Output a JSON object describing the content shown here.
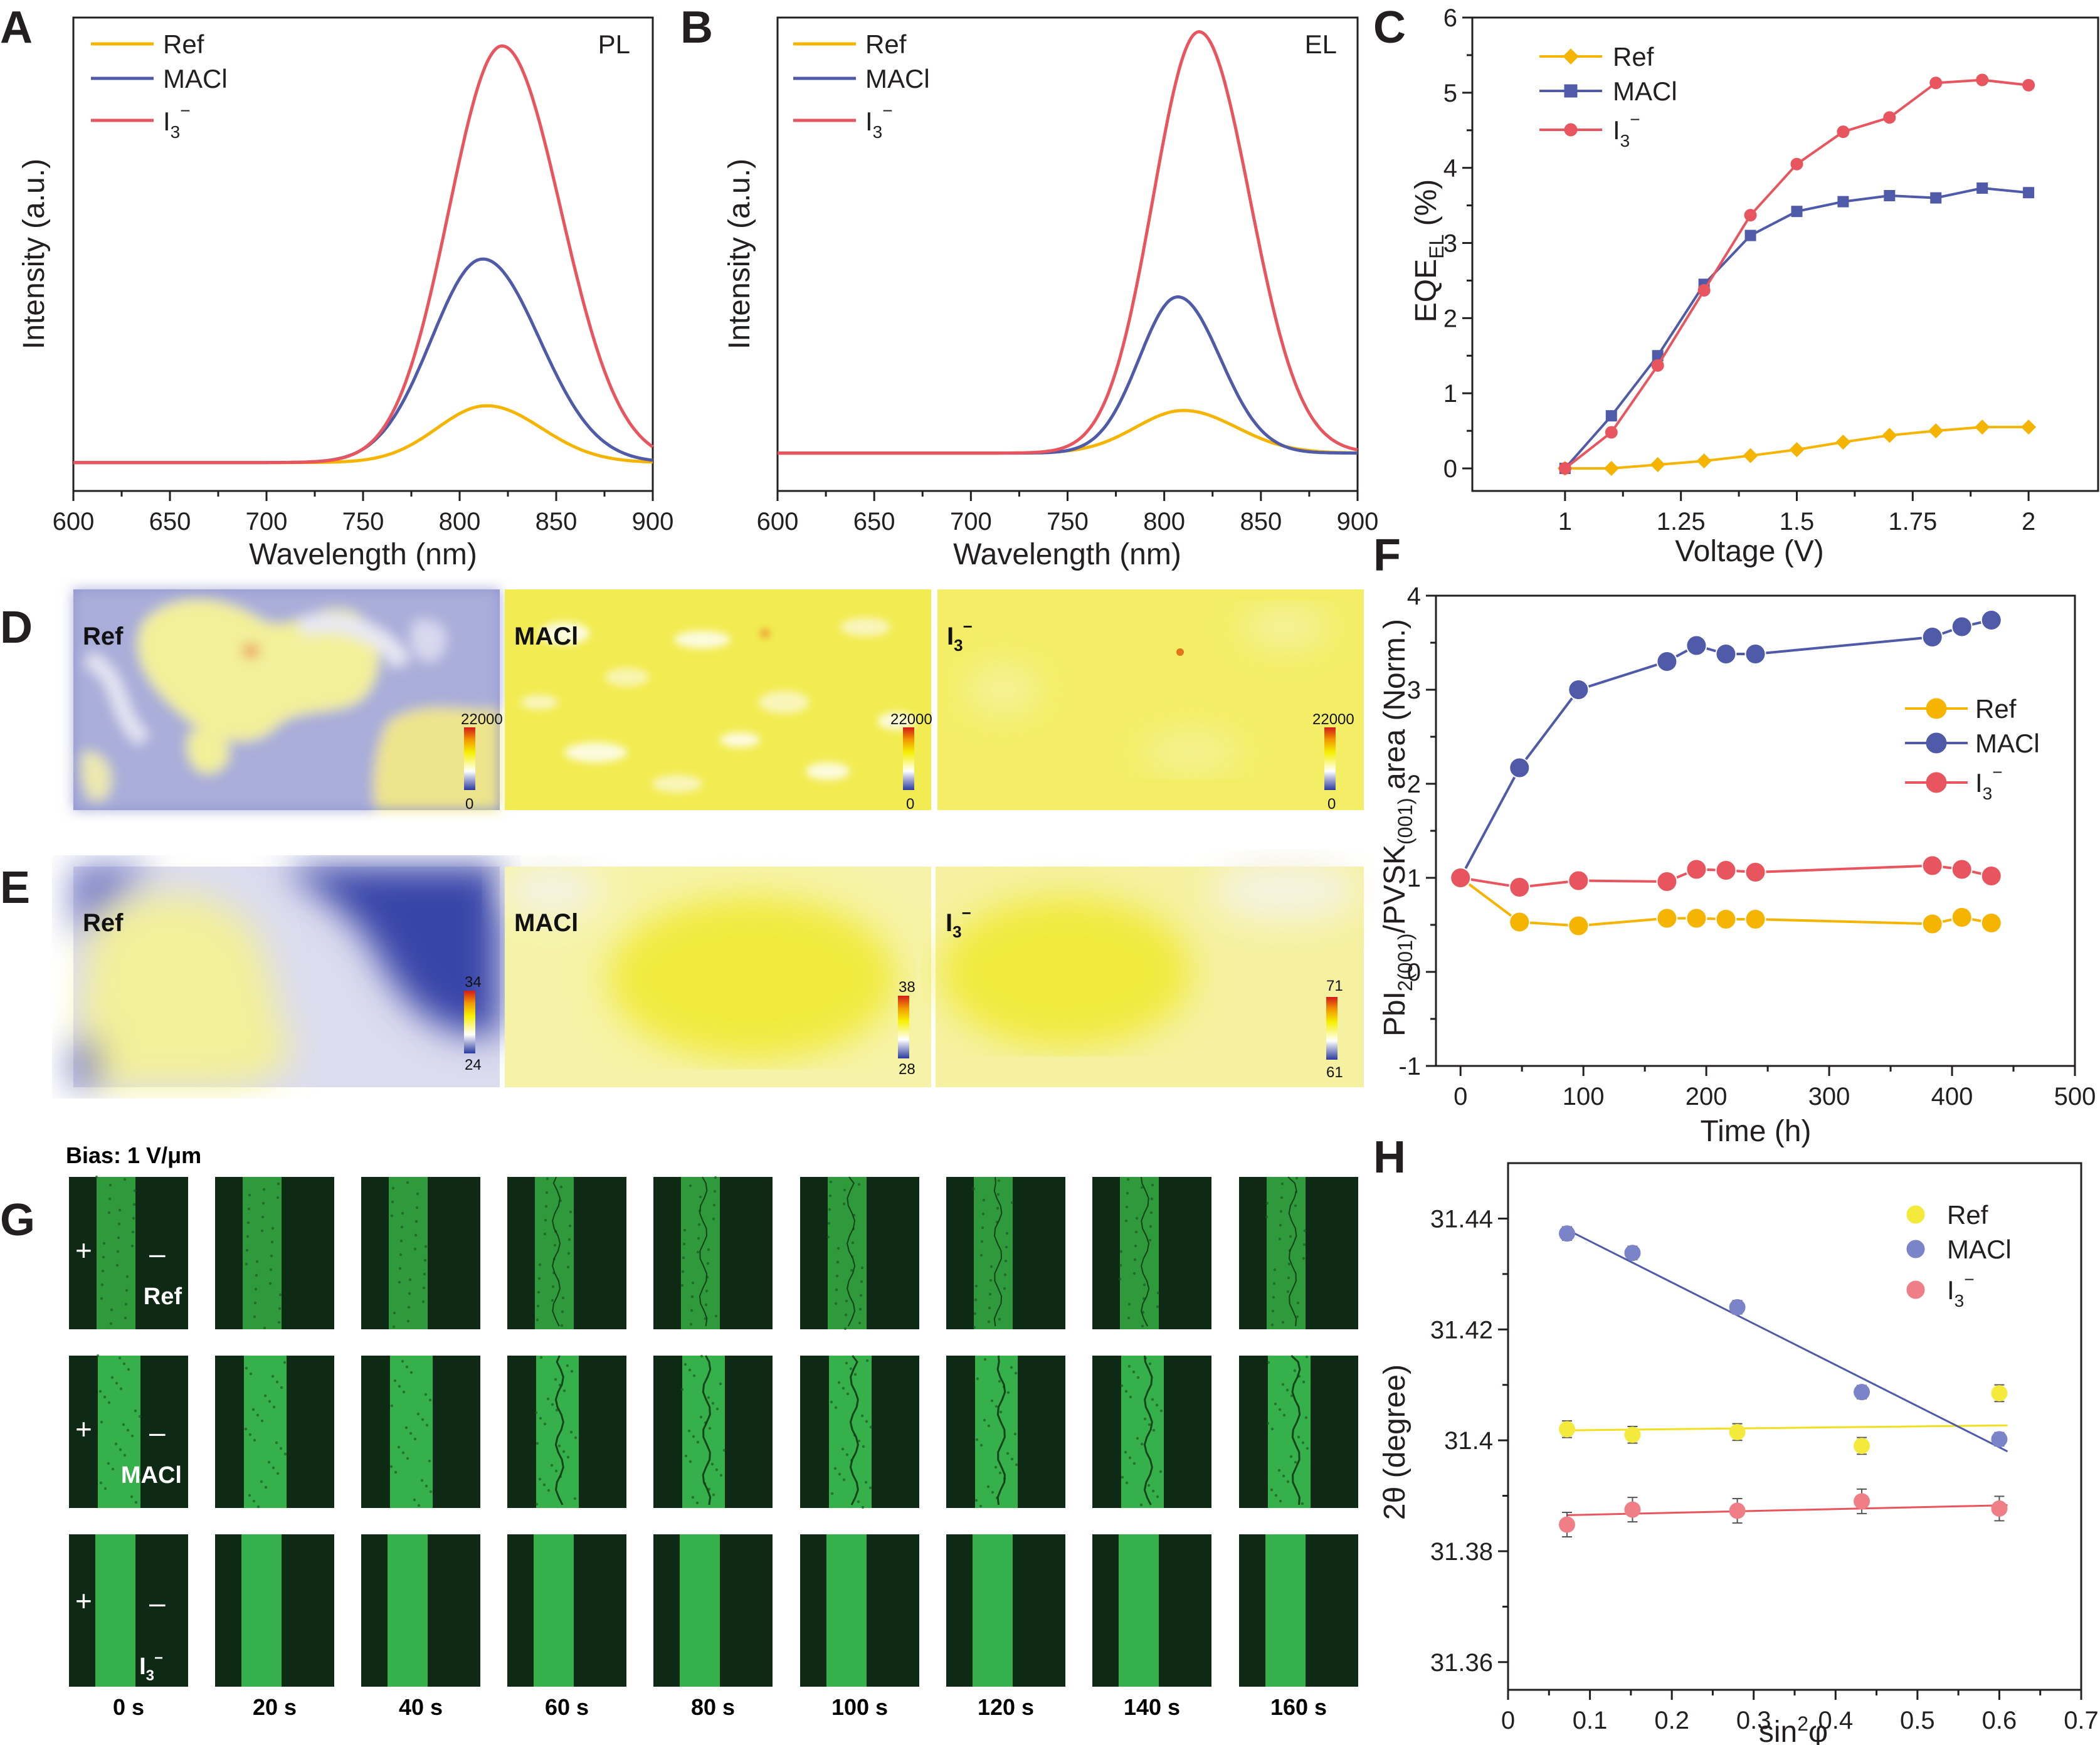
{
  "colors": {
    "ref": "#f5b400",
    "maci": "#4f5aa8",
    "i3": "#e8555e",
    "ref_h": "#f4ea3c",
    "maci_h": "#7b83c9",
    "i3_h": "#f07e86"
  },
  "panels": {
    "A": {
      "letter": "A",
      "tag": "PL"
    },
    "B": {
      "letter": "B",
      "tag": "EL"
    },
    "C": {
      "letter": "C"
    },
    "D": {
      "letter": "D"
    },
    "E": {
      "letter": "E"
    },
    "F": {
      "letter": "F"
    },
    "G": {
      "letter": "G"
    },
    "H": {
      "letter": "H"
    }
  },
  "legend": {
    "ref": "Ref",
    "maci": "MACl",
    "i3_base": "I",
    "i3_sub": "3",
    "i3_sup": "−"
  },
  "maps": {
    "labels": [
      "Ref",
      "MACl",
      "I"
    ],
    "D_scale": [
      [
        "22000",
        "0"
      ],
      [
        "22000",
        "0"
      ],
      [
        "22000",
        "0"
      ]
    ],
    "E_scale": [
      [
        "34",
        "24"
      ],
      [
        "38",
        "28"
      ],
      [
        "71",
        "61"
      ]
    ]
  },
  "microscopy": {
    "bias": "Bias: 1 V/μm",
    "times": [
      "0 s",
      "20 s",
      "40 s",
      "60 s",
      "80 s",
      "100 s",
      "120 s",
      "140 s",
      "160 s"
    ],
    "row_labels": [
      "Ref",
      "MACl",
      "I"
    ],
    "plus": "+",
    "minus": "–"
  },
  "chart_data": [
    {
      "id": "A",
      "type": "line",
      "tag": "PL",
      "xlabel": "Wavelength (nm)",
      "ylabel": "Intensity (a.u.)",
      "xlim": [
        600,
        900
      ],
      "xticks": [
        "600",
        "650",
        "700",
        "750",
        "800",
        "850",
        "900"
      ],
      "y_ticks_shown": false,
      "series": [
        {
          "name": "Ref",
          "peak_nm": 814,
          "width_nm": 27,
          "peak_height": 0.12
        },
        {
          "name": "MACl",
          "peak_nm": 812,
          "width_nm": 28,
          "peak_height": 0.43
        },
        {
          "name": "I3−",
          "peak_nm": 822,
          "width_nm": 29,
          "peak_height": 0.88
        }
      ]
    },
    {
      "id": "B",
      "type": "line",
      "tag": "EL",
      "xlabel": "Wavelength (nm)",
      "ylabel": "Intensity (a.u.)",
      "xlim": [
        600,
        900
      ],
      "xticks": [
        "600",
        "650",
        "700",
        "750",
        "800",
        "850",
        "900"
      ],
      "y_ticks_shown": false,
      "series": [
        {
          "name": "Ref",
          "peak_nm": 810,
          "width_nm": 26,
          "peak_height": 0.09
        },
        {
          "name": "MACl",
          "peak_nm": 807,
          "width_nm": 21,
          "peak_height": 0.33
        },
        {
          "name": "I3−",
          "peak_nm": 818,
          "width_nm": 25,
          "peak_height": 0.89
        }
      ]
    },
    {
      "id": "C",
      "type": "line",
      "xlabel": "Voltage (V)",
      "ylabel": "EQE_EL (%)",
      "xlim": [
        0.8,
        2.15
      ],
      "ylim": [
        -0.3,
        6
      ],
      "xticks": [
        "1",
        "1.25",
        "1.5",
        "1.75",
        "2"
      ],
      "xtick_values": [
        1,
        1.25,
        1.5,
        1.75,
        2
      ],
      "yticks": [
        "0",
        "1",
        "2",
        "3",
        "4",
        "5",
        "6"
      ],
      "x": [
        1.0,
        1.1,
        1.2,
        1.3,
        1.4,
        1.5,
        1.6,
        1.7,
        1.8,
        1.9,
        2.0
      ],
      "series": [
        {
          "name": "Ref",
          "marker": "diamond",
          "values": [
            0.0,
            0.0,
            0.05,
            0.1,
            0.17,
            0.25,
            0.35,
            0.44,
            0.5,
            0.55,
            0.55
          ]
        },
        {
          "name": "MACl",
          "marker": "square",
          "values": [
            0.0,
            0.7,
            1.5,
            2.45,
            3.1,
            3.42,
            3.55,
            3.63,
            3.6,
            3.73,
            3.67
          ]
        },
        {
          "name": "I3−",
          "marker": "circle",
          "values": [
            0.0,
            0.48,
            1.37,
            2.37,
            3.37,
            4.05,
            4.48,
            4.67,
            5.13,
            5.17,
            5.1
          ]
        }
      ]
    },
    {
      "id": "F",
      "type": "line",
      "xlabel": "Time (h)",
      "ylabel": "PbI2(001)/PVSK(001) area (Norm.)",
      "xlim": [
        -20,
        500
      ],
      "ylim": [
        -1,
        4
      ],
      "xticks": [
        "0",
        "100",
        "200",
        "300",
        "400",
        "500"
      ],
      "xtick_values": [
        0,
        100,
        200,
        300,
        400,
        500
      ],
      "yticks": [
        "-1",
        "0",
        "1",
        "2",
        "3",
        "4"
      ],
      "x": [
        0,
        48,
        96,
        168,
        192,
        216,
        240,
        384,
        408,
        432
      ],
      "series": [
        {
          "name": "Ref",
          "values": [
            1.0,
            0.53,
            0.49,
            0.57,
            0.57,
            0.56,
            0.56,
            0.51,
            0.58,
            0.52
          ]
        },
        {
          "name": "MACl",
          "values": [
            1.0,
            2.17,
            3.0,
            3.3,
            3.47,
            3.38,
            3.38,
            3.56,
            3.67,
            3.74
          ]
        },
        {
          "name": "I3−",
          "values": [
            1.0,
            0.9,
            0.97,
            0.96,
            1.09,
            1.08,
            1.06,
            1.13,
            1.09,
            1.02
          ]
        }
      ]
    },
    {
      "id": "H",
      "type": "scatter",
      "xlabel": "sin²φ",
      "ylabel": "2θ (degree)",
      "xlim": [
        0,
        0.7
      ],
      "ylim": [
        31.355,
        31.45
      ],
      "xticks": [
        "0",
        "0.1",
        "0.2",
        "0.3",
        "0.4",
        "0.5",
        "0.6",
        "0.7"
      ],
      "xtick_values": [
        0,
        0.1,
        0.2,
        0.3,
        0.4,
        0.5,
        0.6,
        0.7
      ],
      "yticks": [
        "31.36",
        "31.38",
        "31.4",
        "31.42",
        "31.44"
      ],
      "ytick_values": [
        31.36,
        31.38,
        31.4,
        31.42,
        31.44
      ],
      "x": [
        0.072,
        0.152,
        0.28,
        0.432,
        0.6
      ],
      "series": [
        {
          "name": "Ref",
          "values": [
            31.402,
            31.401,
            31.4015,
            31.399,
            31.4085
          ],
          "fit": [
            31.4018,
            31.4027
          ],
          "error": 0.0015
        },
        {
          "name": "MACl",
          "values": [
            31.4373,
            31.4338,
            31.424,
            31.4087,
            31.4002
          ],
          "fit": [
            31.438,
            31.398
          ],
          "error": 0.0012
        },
        {
          "name": "I3−",
          "values": [
            31.3848,
            31.3875,
            31.3873,
            31.389,
            31.3877
          ],
          "fit": [
            31.3865,
            31.3883
          ],
          "error": 0.0022
        }
      ]
    }
  ]
}
